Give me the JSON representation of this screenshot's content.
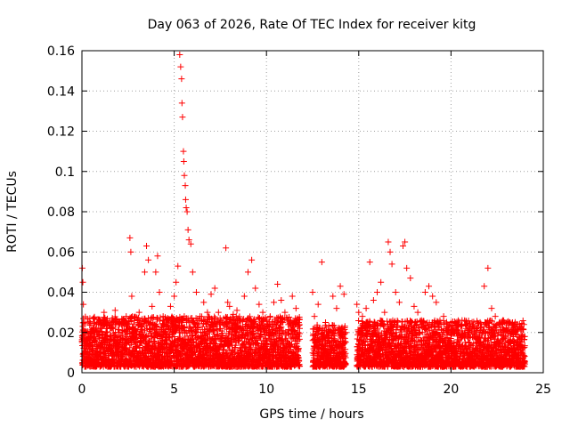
{
  "chart_data": {
    "type": "scatter",
    "title": "Day 063 of 2026, Rate Of TEC Index for receiver kitg",
    "xlabel": "GPS time / hours",
    "ylabel": "ROTI / TECUs",
    "xlim": [
      0,
      25
    ],
    "ylim": [
      0,
      0.16
    ],
    "x_ticks": [
      0,
      5,
      10,
      15,
      20,
      25
    ],
    "x_tick_labels": [
      "0",
      "5",
      "10",
      "15",
      "20",
      "25"
    ],
    "y_ticks": [
      0,
      0.02,
      0.04,
      0.06,
      0.08,
      0.1,
      0.12,
      0.14,
      0.16
    ],
    "y_tick_labels": [
      "0",
      "0.02",
      "0.04",
      "0.06",
      "0.08",
      "0.1",
      "0.12",
      "0.14",
      "0.16"
    ],
    "grid": true,
    "marker": "+",
    "color": "#ff0000",
    "series": [
      {
        "name": "ROTI",
        "x": [
          0.02,
          0.05,
          0.08,
          0.1,
          0.12,
          0.15,
          0.2,
          0.3,
          0.45,
          0.6,
          0.8,
          1.0,
          1.2,
          1.4,
          1.6,
          1.8,
          2.0,
          2.2,
          2.4,
          2.6,
          2.65,
          2.7,
          2.9,
          3.1,
          3.4,
          3.5,
          3.6,
          3.8,
          4.0,
          4.1,
          4.2,
          4.4,
          4.6,
          4.8,
          5.0,
          5.1,
          5.2,
          5.3,
          5.35,
          5.4,
          5.42,
          5.45,
          5.5,
          5.52,
          5.55,
          5.6,
          5.62,
          5.65,
          5.7,
          5.75,
          5.8,
          5.9,
          6.0,
          6.2,
          6.4,
          6.6,
          6.8,
          7.0,
          7.2,
          7.4,
          7.6,
          7.8,
          7.9,
          8.0,
          8.2,
          8.4,
          8.6,
          8.8,
          9.0,
          9.2,
          9.4,
          9.6,
          9.8,
          10.0,
          10.2,
          10.4,
          10.6,
          10.8,
          11.0,
          11.2,
          11.4,
          11.6,
          11.8,
          12.5,
          12.6,
          12.8,
          13.0,
          13.2,
          13.4,
          13.6,
          13.8,
          14.0,
          14.2,
          14.3,
          14.9,
          15.0,
          15.2,
          15.4,
          15.6,
          15.8,
          16.0,
          16.2,
          16.4,
          16.6,
          16.7,
          16.8,
          17.0,
          17.2,
          17.4,
          17.5,
          17.6,
          17.8,
          18.0,
          18.2,
          18.4,
          18.6,
          18.8,
          19.0,
          19.2,
          19.4,
          19.6,
          19.8,
          20.0,
          20.2,
          20.4,
          20.6,
          20.8,
          21.0,
          21.2,
          21.4,
          21.6,
          21.8,
          22.0,
          22.2,
          22.4,
          22.6,
          22.8,
          23.0,
          23.2,
          23.4,
          23.6,
          23.8,
          24.0
        ],
        "y": [
          0.052,
          0.045,
          0.034,
          0.025,
          0.018,
          0.012,
          0.015,
          0.01,
          0.018,
          0.022,
          0.014,
          0.026,
          0.03,
          0.016,
          0.024,
          0.031,
          0.02,
          0.017,
          0.028,
          0.067,
          0.06,
          0.038,
          0.022,
          0.03,
          0.05,
          0.063,
          0.056,
          0.033,
          0.05,
          0.058,
          0.04,
          0.028,
          0.026,
          0.033,
          0.038,
          0.045,
          0.053,
          0.158,
          0.152,
          0.146,
          0.134,
          0.127,
          0.11,
          0.105,
          0.098,
          0.093,
          0.086,
          0.082,
          0.08,
          0.071,
          0.066,
          0.064,
          0.05,
          0.04,
          0.028,
          0.035,
          0.03,
          0.039,
          0.042,
          0.03,
          0.025,
          0.062,
          0.035,
          0.033,
          0.029,
          0.031,
          0.026,
          0.038,
          0.05,
          0.056,
          0.042,
          0.034,
          0.03,
          0.024,
          0.028,
          0.035,
          0.044,
          0.036,
          0.03,
          0.026,
          0.038,
          0.032,
          0.022,
          0.04,
          0.028,
          0.034,
          0.055,
          0.025,
          0.02,
          0.038,
          0.032,
          0.043,
          0.039,
          0.02,
          0.034,
          0.03,
          0.028,
          0.032,
          0.055,
          0.036,
          0.04,
          0.045,
          0.03,
          0.065,
          0.06,
          0.054,
          0.04,
          0.035,
          0.063,
          0.065,
          0.052,
          0.047,
          0.033,
          0.03,
          0.026,
          0.04,
          0.043,
          0.038,
          0.035,
          0.026,
          0.028,
          0.024,
          0.019,
          0.02,
          0.023,
          0.026,
          0.022,
          0.02,
          0.024,
          0.018,
          0.021,
          0.043,
          0.052,
          0.032,
          0.028,
          0.024,
          0.026,
          0.022,
          0.025,
          0.02,
          0.024,
          0.022,
          0.018
        ]
      }
    ],
    "dense_band": {
      "description_level": "data",
      "segments": [
        {
          "x_start": 0.0,
          "x_end": 11.8,
          "y_low": 0.003,
          "y_high": 0.028
        },
        {
          "x_start": 12.5,
          "x_end": 14.3,
          "y_low": 0.003,
          "y_high": 0.024
        },
        {
          "x_start": 14.9,
          "x_end": 24.0,
          "y_low": 0.003,
          "y_high": 0.026
        }
      ]
    }
  }
}
